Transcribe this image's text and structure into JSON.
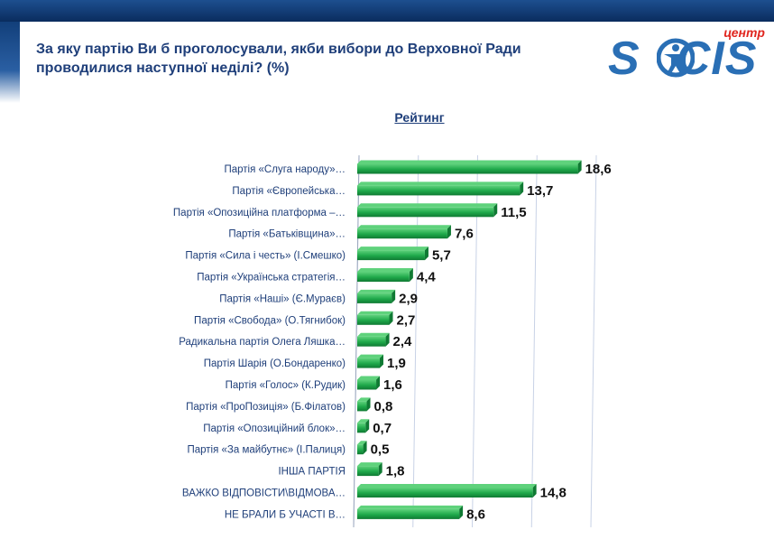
{
  "header": {
    "question": "За яку партію Ви б проголосували, якби вибори до Верховної Ради проводилися наступної неділі? (%)"
  },
  "logo": {
    "tag": "центр",
    "word_start": "S",
    "word_end": "CIS"
  },
  "colors": {
    "bar": "#1ea84a",
    "bar_light": "#5fd27c",
    "bar_dark": "#0f7a33",
    "gridline": "#c8d2e6",
    "text": "#1f3f7a"
  },
  "chart_data": {
    "type": "bar",
    "orientation": "horizontal",
    "title": "Рейтинг",
    "categories": [
      "Партія «Слуга народу»…",
      "Партія «Європейська…",
      "Партія «Опозиційна платформа –…",
      "Партія «Батьківщина»…",
      "Партія «Сила і честь» (І.Смешко)",
      "Партія «Українська стратегія…",
      "Партія «Наші» (Є.Мураєв)",
      "Партія «Свобода» (О.Тягнибок)",
      "Радикальна партія Олега Ляшка…",
      "Партія Шарія (О.Бондаренко)",
      "Партія «Голос» (К.Рудик)",
      "Партія «ПроПозиція» (Б.Філатов)",
      "Партія «Опозиційний блок»…",
      "Партія «За майбутнє» (І.Палиця)",
      "ІНША ПАРТІЯ",
      "ВАЖКО ВІДПОВІСТИ\\ВІДМОВА…",
      "НЕ БРАЛИ Б УЧАСТІ В…"
    ],
    "values": [
      18.6,
      13.7,
      11.5,
      7.6,
      5.7,
      4.4,
      2.9,
      2.7,
      2.4,
      1.9,
      1.6,
      0.8,
      0.7,
      0.5,
      1.8,
      14.8,
      8.6
    ],
    "value_labels": [
      "18,6",
      "13,7",
      "11,5",
      "7,6",
      "5,7",
      "4,4",
      "2,9",
      "2,7",
      "2,4",
      "1,9",
      "1,6",
      "0,8",
      "0,7",
      "0,5",
      "1,8",
      "14,8",
      "8,6"
    ],
    "xlim": [
      0,
      20
    ],
    "gridlines": [
      0,
      5,
      10,
      15,
      20
    ],
    "xlabel": "",
    "ylabel": ""
  }
}
